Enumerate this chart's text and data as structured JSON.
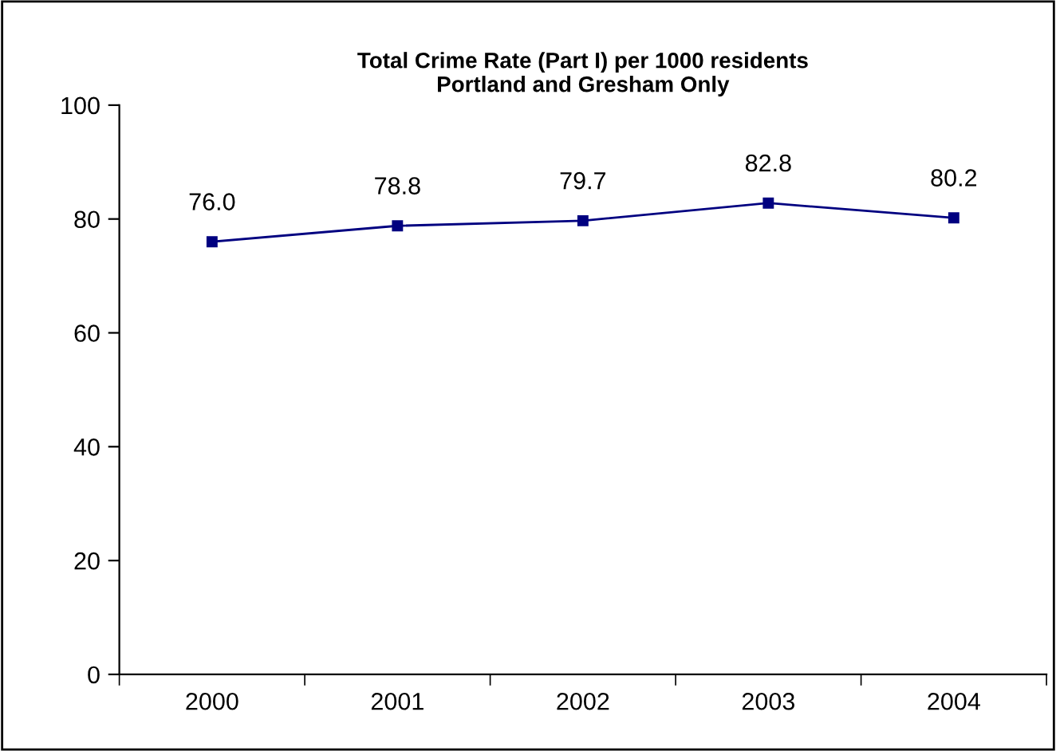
{
  "chart_data": {
    "type": "line",
    "title": "Total Crime Rate (Part I) per 1000 residents\nPortland and Gresham Only",
    "categories": [
      "2000",
      "2001",
      "2002",
      "2003",
      "2004"
    ],
    "series": [
      {
        "color": "#000080",
        "values": [
          76.0,
          78.8,
          79.7,
          82.8,
          80.2
        ]
      }
    ],
    "value_labels": [
      "76.0",
      "78.8",
      "79.7",
      "82.8",
      "80.2"
    ],
    "ylim": [
      0,
      100
    ],
    "yticks": [
      0,
      20,
      40,
      60,
      80,
      100
    ],
    "grid": false,
    "legend": false,
    "marker": "square",
    "line_style": "solid"
  }
}
